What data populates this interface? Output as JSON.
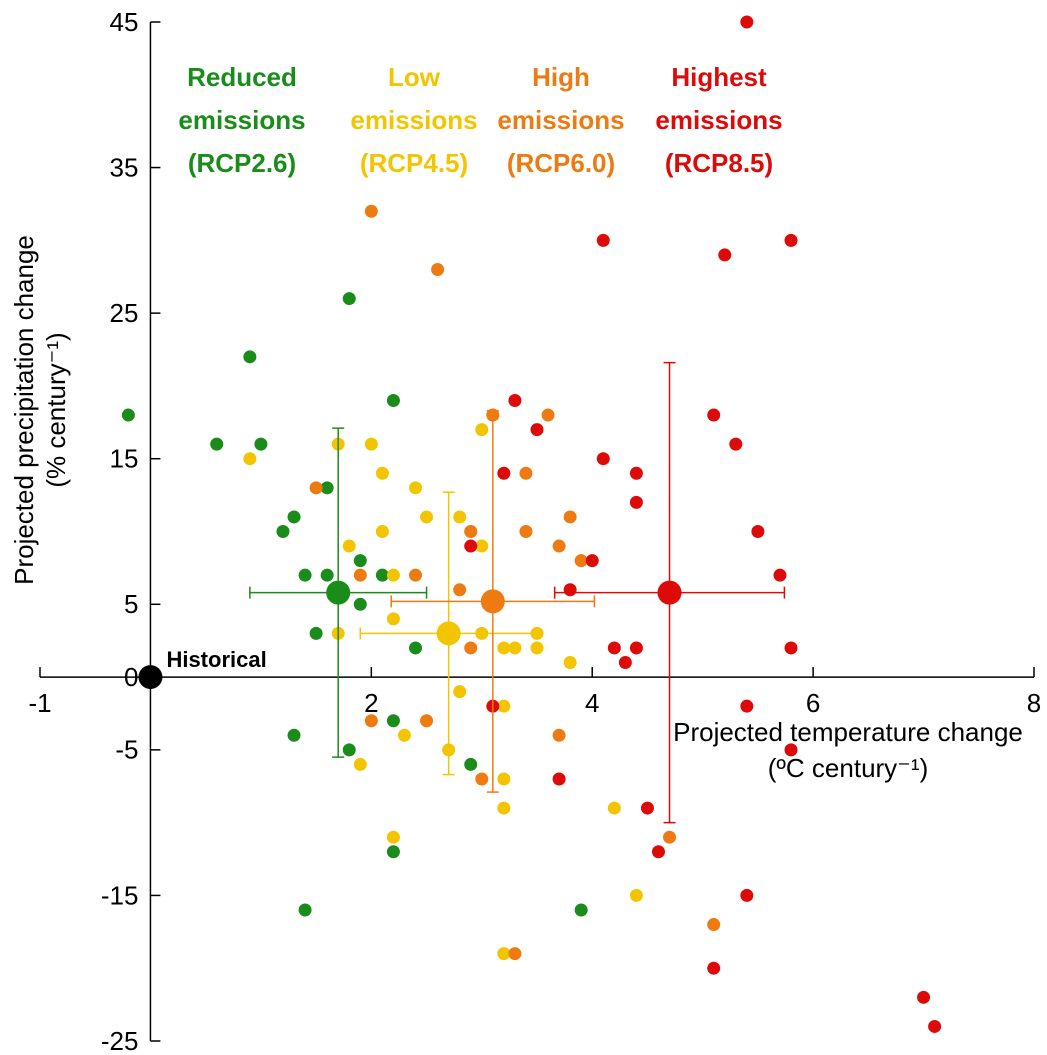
{
  "chart_data": {
    "type": "scatter",
    "xlabel": [
      "Projected temperature change",
      "(ºC century⁻¹)"
    ],
    "ylabel": [
      "Projected precipitation change",
      "(% century⁻¹)"
    ],
    "xlim": [
      -1,
      8
    ],
    "ylim": [
      -25,
      45
    ],
    "xticks": [
      -1,
      2,
      4,
      6,
      8
    ],
    "yticks": [
      -25,
      -15,
      -5,
      0,
      5,
      15,
      25,
      35,
      45
    ],
    "historical": {
      "name": "Historical",
      "x": 0,
      "y": 0,
      "color": "#000000"
    },
    "series": [
      {
        "name": "Reduced emissions (RCP2.6)",
        "color": "#1a8c1a",
        "x": [
          -0.2,
          0.6,
          0.9,
          1.0,
          1.2,
          1.3,
          1.4,
          1.5,
          1.6,
          1.6,
          1.8,
          1.9,
          1.9,
          2.1,
          2.2,
          2.4,
          1.3,
          1.8,
          2.2,
          2.2,
          1.4,
          2.9,
          3.9
        ],
        "y": [
          18,
          16,
          22,
          16,
          10,
          11,
          7,
          3,
          13,
          7,
          26,
          8,
          5,
          7,
          19,
          2,
          -4,
          -5,
          -3,
          -12,
          -16,
          -6,
          -16
        ],
        "mean": {
          "x": 1.7,
          "y": 5.8,
          "xerr": 0.8,
          "yerr": 11.3
        }
      },
      {
        "name": "Low emissions (RCP4.5)",
        "color": "#f2c500",
        "x": [
          0.9,
          1.7,
          1.7,
          1.8,
          2.0,
          2.1,
          2.1,
          2.2,
          2.2,
          2.4,
          2.5,
          2.8,
          2.9,
          3.0,
          3.0,
          3.1,
          3.0,
          3.2,
          3.3,
          3.5,
          3.5,
          3.8,
          2.8,
          3.2,
          2.7,
          2.3,
          1.9,
          3.2,
          3.2,
          2.2,
          4.2,
          4.4,
          3.2
        ],
        "y": [
          15,
          16,
          3,
          9,
          16,
          14,
          10,
          7,
          4,
          13,
          11,
          11,
          10,
          9,
          17,
          18,
          3,
          2,
          2,
          3,
          2,
          1,
          -1,
          -2,
          -5,
          -4,
          -6,
          -7,
          -9,
          -11,
          -9,
          -15,
          -19
        ],
        "mean": {
          "x": 2.7,
          "y": 3.0,
          "xerr": 0.8,
          "yerr": 9.7
        }
      },
      {
        "name": "High emissions (RCP6.0)",
        "color": "#ee7a12",
        "x": [
          2.0,
          2.6,
          1.5,
          1.9,
          2.4,
          2.8,
          2.9,
          2.9,
          3.1,
          3.4,
          3.4,
          3.6,
          3.7,
          3.8,
          3.9,
          2.0,
          2.5,
          3.0,
          3.3,
          3.7,
          4.7,
          5.1
        ],
        "y": [
          32,
          28,
          13,
          7,
          7,
          6,
          10,
          2,
          18,
          14,
          10,
          18,
          9,
          11,
          8,
          -3,
          -3,
          -7,
          -19,
          -4,
          -11,
          -17
        ],
        "mean": {
          "x": 3.1,
          "y": 5.2,
          "xerr": 0.92,
          "yerr": 13.1
        }
      },
      {
        "name": "Highest emissions (RCP8.5)",
        "color": "#dd0a0a",
        "x": [
          5.4,
          4.1,
          5.2,
          5.8,
          3.3,
          3.5,
          3.2,
          2.9,
          4.1,
          4.4,
          4.4,
          5.1,
          5.3,
          5.5,
          5.7,
          4.0,
          3.8,
          4.2,
          4.3,
          4.4,
          5.8,
          5.4,
          3.1,
          3.7,
          5.8,
          4.5,
          4.6,
          5.4,
          5.1,
          7.0,
          7.1
        ],
        "y": [
          45,
          30,
          29,
          30,
          19,
          17,
          14,
          9,
          15,
          14,
          12,
          18,
          16,
          10,
          7,
          8,
          6,
          2,
          1,
          2,
          2,
          -2,
          -2,
          -7,
          -5,
          -9,
          -12,
          -15,
          -20,
          -22,
          -24
        ],
        "mean": {
          "x": 4.7,
          "y": 5.8,
          "xerr": 1.04,
          "yerr": 15.8
        }
      }
    ]
  }
}
